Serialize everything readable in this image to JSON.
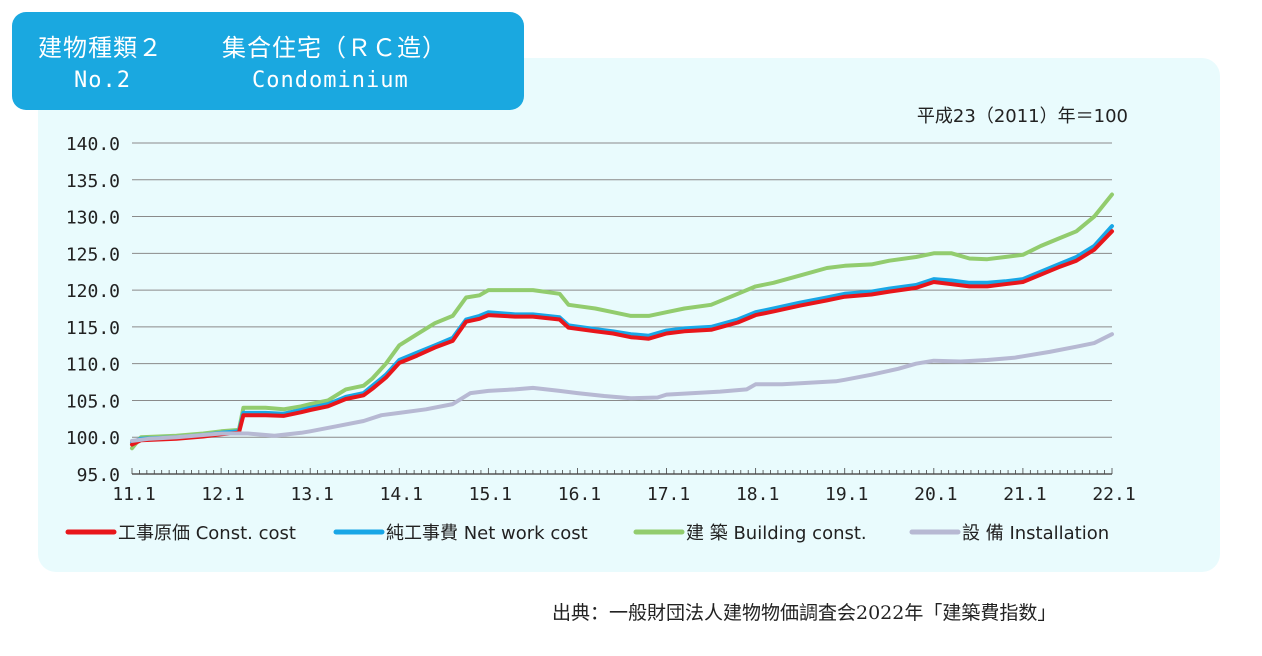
{
  "header": {
    "title_jp_1": "建物種類２",
    "title_jp_2": "集合住宅（ＲＣ造）",
    "title_en_1": "No.2",
    "title_en_2": "Condominium"
  },
  "source": "出典：一般財団法人建物物価調査会2022年「建築費指数」",
  "colors": {
    "panel": "#e9fbfd",
    "title_box": "#1aa8e0",
    "const_cost": "#e8161b",
    "net_work_cost": "#18a6e6",
    "building": "#92cc6e",
    "installation": "#b7b9d3"
  },
  "chart_data": {
    "type": "line",
    "note": "平成23（2011）年＝100",
    "ylim": [
      95,
      140
    ],
    "yticks": [
      "140.0",
      "135.0",
      "130.0",
      "125.0",
      "120.0",
      "115.0",
      "110.0",
      "105.0",
      "100.0",
      "95.0"
    ],
    "xlim": [
      2011,
      2022
    ],
    "xticks": [
      "11.1",
      "12.1",
      "13.1",
      "14.1",
      "15.1",
      "16.1",
      "17.1",
      "18.1",
      "19.1",
      "20.1",
      "21.1",
      "22.1"
    ],
    "legend": [
      "工事原価 Const. cost",
      "純工事費 Net work cost",
      "建 築 Building const.",
      "設 備 Installation"
    ],
    "series": [
      {
        "name": "建 築 Building const.",
        "color": "#92cc6e",
        "points": [
          [
            2011.0,
            98.5
          ],
          [
            2011.1,
            100.0
          ],
          [
            2011.5,
            100.2
          ],
          [
            2011.8,
            100.5
          ],
          [
            2012.0,
            100.8
          ],
          [
            2012.2,
            101.0
          ],
          [
            2012.25,
            104.0
          ],
          [
            2012.5,
            104.0
          ],
          [
            2012.7,
            103.8
          ],
          [
            2012.9,
            104.2
          ],
          [
            2013.0,
            104.5
          ],
          [
            2013.2,
            105.0
          ],
          [
            2013.4,
            106.5
          ],
          [
            2013.6,
            107.0
          ],
          [
            2013.7,
            108.0
          ],
          [
            2013.85,
            110.0
          ],
          [
            2014.0,
            112.5
          ],
          [
            2014.2,
            114.0
          ],
          [
            2014.4,
            115.5
          ],
          [
            2014.6,
            116.5
          ],
          [
            2014.75,
            119.0
          ],
          [
            2014.9,
            119.3
          ],
          [
            2015.0,
            120.0
          ],
          [
            2015.3,
            120.0
          ],
          [
            2015.5,
            120.0
          ],
          [
            2015.8,
            119.5
          ],
          [
            2015.9,
            118.0
          ],
          [
            2016.2,
            117.5
          ],
          [
            2016.4,
            117.0
          ],
          [
            2016.6,
            116.5
          ],
          [
            2016.8,
            116.5
          ],
          [
            2017.0,
            117.0
          ],
          [
            2017.2,
            117.5
          ],
          [
            2017.5,
            118.0
          ],
          [
            2017.8,
            119.5
          ],
          [
            2018.0,
            120.5
          ],
          [
            2018.2,
            121.0
          ],
          [
            2018.5,
            122.0
          ],
          [
            2018.8,
            123.0
          ],
          [
            2019.0,
            123.3
          ],
          [
            2019.3,
            123.5
          ],
          [
            2019.5,
            124.0
          ],
          [
            2019.8,
            124.5
          ],
          [
            2020.0,
            125.0
          ],
          [
            2020.2,
            125.0
          ],
          [
            2020.4,
            124.3
          ],
          [
            2020.6,
            124.2
          ],
          [
            2020.8,
            124.5
          ],
          [
            2021.0,
            124.8
          ],
          [
            2021.2,
            126.0
          ],
          [
            2021.4,
            127.0
          ],
          [
            2021.6,
            128.0
          ],
          [
            2021.8,
            130.0
          ],
          [
            2022.0,
            133.0
          ]
        ]
      },
      {
        "name": "純工事費 Net work cost",
        "color": "#18a6e6",
        "points": [
          [
            2011.0,
            99.3
          ],
          [
            2011.1,
            99.8
          ],
          [
            2011.5,
            100.0
          ],
          [
            2011.8,
            100.3
          ],
          [
            2012.0,
            100.6
          ],
          [
            2012.2,
            100.8
          ],
          [
            2012.25,
            103.3
          ],
          [
            2012.5,
            103.3
          ],
          [
            2012.7,
            103.2
          ],
          [
            2012.9,
            103.7
          ],
          [
            2013.0,
            104.0
          ],
          [
            2013.2,
            104.5
          ],
          [
            2013.4,
            105.5
          ],
          [
            2013.6,
            106.0
          ],
          [
            2013.7,
            107.0
          ],
          [
            2013.85,
            108.5
          ],
          [
            2014.0,
            110.5
          ],
          [
            2014.2,
            111.5
          ],
          [
            2014.4,
            112.5
          ],
          [
            2014.6,
            113.5
          ],
          [
            2014.75,
            116.0
          ],
          [
            2014.9,
            116.5
          ],
          [
            2015.0,
            117.0
          ],
          [
            2015.3,
            116.7
          ],
          [
            2015.5,
            116.7
          ],
          [
            2015.8,
            116.3
          ],
          [
            2015.9,
            115.2
          ],
          [
            2016.2,
            114.7
          ],
          [
            2016.4,
            114.4
          ],
          [
            2016.6,
            114.0
          ],
          [
            2016.8,
            113.8
          ],
          [
            2017.0,
            114.5
          ],
          [
            2017.2,
            114.8
          ],
          [
            2017.5,
            115.0
          ],
          [
            2017.8,
            116.0
          ],
          [
            2018.0,
            117.0
          ],
          [
            2018.2,
            117.5
          ],
          [
            2018.5,
            118.3
          ],
          [
            2018.8,
            119.0
          ],
          [
            2019.0,
            119.5
          ],
          [
            2019.3,
            119.8
          ],
          [
            2019.5,
            120.2
          ],
          [
            2019.8,
            120.7
          ],
          [
            2020.0,
            121.5
          ],
          [
            2020.2,
            121.3
          ],
          [
            2020.4,
            121.0
          ],
          [
            2020.6,
            121.0
          ],
          [
            2020.8,
            121.2
          ],
          [
            2021.0,
            121.5
          ],
          [
            2021.2,
            122.5
          ],
          [
            2021.4,
            123.5
          ],
          [
            2021.6,
            124.5
          ],
          [
            2021.8,
            126.0
          ],
          [
            2022.0,
            128.7
          ]
        ]
      },
      {
        "name": "工事原価 Const. cost",
        "color": "#e8161b",
        "points": [
          [
            2011.0,
            99.0
          ],
          [
            2011.1,
            99.6
          ],
          [
            2011.5,
            99.8
          ],
          [
            2011.8,
            100.1
          ],
          [
            2012.0,
            100.4
          ],
          [
            2012.2,
            100.6
          ],
          [
            2012.25,
            103.0
          ],
          [
            2012.5,
            103.0
          ],
          [
            2012.7,
            102.9
          ],
          [
            2012.9,
            103.4
          ],
          [
            2013.0,
            103.7
          ],
          [
            2013.2,
            104.2
          ],
          [
            2013.4,
            105.2
          ],
          [
            2013.6,
            105.7
          ],
          [
            2013.7,
            106.6
          ],
          [
            2013.85,
            108.1
          ],
          [
            2014.0,
            110.1
          ],
          [
            2014.2,
            111.1
          ],
          [
            2014.4,
            112.2
          ],
          [
            2014.6,
            113.1
          ],
          [
            2014.75,
            115.7
          ],
          [
            2014.9,
            116.1
          ],
          [
            2015.0,
            116.6
          ],
          [
            2015.3,
            116.4
          ],
          [
            2015.5,
            116.4
          ],
          [
            2015.8,
            116.0
          ],
          [
            2015.9,
            114.9
          ],
          [
            2016.2,
            114.4
          ],
          [
            2016.4,
            114.1
          ],
          [
            2016.6,
            113.6
          ],
          [
            2016.8,
            113.4
          ],
          [
            2017.0,
            114.1
          ],
          [
            2017.2,
            114.4
          ],
          [
            2017.5,
            114.6
          ],
          [
            2017.8,
            115.6
          ],
          [
            2018.0,
            116.6
          ],
          [
            2018.2,
            117.1
          ],
          [
            2018.5,
            117.9
          ],
          [
            2018.8,
            118.6
          ],
          [
            2019.0,
            119.1
          ],
          [
            2019.3,
            119.4
          ],
          [
            2019.5,
            119.8
          ],
          [
            2019.8,
            120.3
          ],
          [
            2020.0,
            121.1
          ],
          [
            2020.2,
            120.8
          ],
          [
            2020.4,
            120.5
          ],
          [
            2020.6,
            120.5
          ],
          [
            2020.8,
            120.8
          ],
          [
            2021.0,
            121.1
          ],
          [
            2021.2,
            122.1
          ],
          [
            2021.4,
            123.1
          ],
          [
            2021.6,
            124.0
          ],
          [
            2021.8,
            125.5
          ],
          [
            2022.0,
            128.0
          ]
        ]
      },
      {
        "name": "設 備 Installation",
        "color": "#b7b9d3",
        "points": [
          [
            2011.0,
            99.5
          ],
          [
            2011.2,
            99.8
          ],
          [
            2011.5,
            100.0
          ],
          [
            2011.8,
            100.3
          ],
          [
            2012.0,
            100.5
          ],
          [
            2012.3,
            100.5
          ],
          [
            2012.6,
            100.2
          ],
          [
            2012.9,
            100.6
          ],
          [
            2013.0,
            100.8
          ],
          [
            2013.3,
            101.5
          ],
          [
            2013.6,
            102.2
          ],
          [
            2013.8,
            103.0
          ],
          [
            2014.0,
            103.3
          ],
          [
            2014.3,
            103.8
          ],
          [
            2014.6,
            104.5
          ],
          [
            2014.8,
            106.0
          ],
          [
            2015.0,
            106.3
          ],
          [
            2015.3,
            106.5
          ],
          [
            2015.5,
            106.7
          ],
          [
            2015.8,
            106.3
          ],
          [
            2016.0,
            106.0
          ],
          [
            2016.3,
            105.6
          ],
          [
            2016.6,
            105.3
          ],
          [
            2016.9,
            105.4
          ],
          [
            2017.0,
            105.8
          ],
          [
            2017.3,
            106.0
          ],
          [
            2017.6,
            106.2
          ],
          [
            2017.9,
            106.5
          ],
          [
            2018.0,
            107.2
          ],
          [
            2018.3,
            107.2
          ],
          [
            2018.6,
            107.4
          ],
          [
            2018.9,
            107.6
          ],
          [
            2019.0,
            107.8
          ],
          [
            2019.3,
            108.5
          ],
          [
            2019.6,
            109.3
          ],
          [
            2019.8,
            110.0
          ],
          [
            2020.0,
            110.4
          ],
          [
            2020.3,
            110.3
          ],
          [
            2020.6,
            110.5
          ],
          [
            2020.9,
            110.8
          ],
          [
            2021.0,
            111.0
          ],
          [
            2021.3,
            111.6
          ],
          [
            2021.6,
            112.3
          ],
          [
            2021.8,
            112.8
          ],
          [
            2022.0,
            114.0
          ]
        ]
      }
    ]
  }
}
